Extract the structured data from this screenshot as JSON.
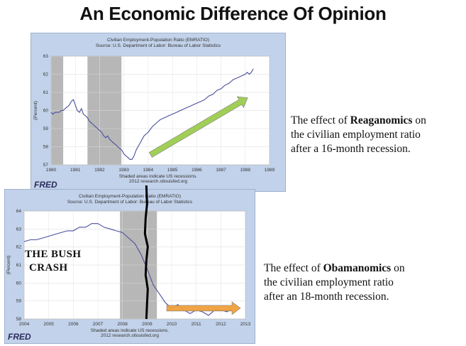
{
  "headline": "An Economic Difference Of Opinion",
  "chart_data": [
    {
      "type": "line",
      "title": "Civilian Employment-Population Ratio (EMRATIO)",
      "subtitle": "Source: U.S. Department of Labor: Bureau of Labor Statistics",
      "ylabel": "(Percent)",
      "xlim": [
        1980,
        1989
      ],
      "ylim": [
        57,
        63
      ],
      "yticks": [
        57,
        58,
        59,
        60,
        61,
        62,
        63
      ],
      "xticks": [
        "1980",
        "1981",
        "1982",
        "1983",
        "1984",
        "1985",
        "1986",
        "1987",
        "1988",
        "1989"
      ],
      "recessions": [
        [
          1980.0,
          1980.5
        ],
        [
          1981.5,
          1982.9
        ]
      ],
      "series": [
        {
          "x": [
            1980.0,
            1980.08,
            1980.17,
            1980.25,
            1980.33,
            1980.42,
            1980.5,
            1980.58,
            1980.67,
            1980.75,
            1980.83,
            1980.92,
            1981.0,
            1981.08,
            1981.17,
            1981.25,
            1981.33,
            1981.42,
            1981.5,
            1981.58,
            1981.67,
            1981.75,
            1981.83,
            1981.92,
            1982.0,
            1982.08,
            1982.17,
            1982.25,
            1982.33,
            1982.42,
            1982.5,
            1982.58,
            1982.67,
            1982.75,
            1982.83,
            1982.92,
            1983.0,
            1983.08,
            1983.17,
            1983.25,
            1983.33,
            1983.42,
            1983.5,
            1983.58,
            1983.67,
            1983.75,
            1983.83,
            1983.92,
            1984.0,
            1984.17,
            1984.33,
            1984.5,
            1984.67,
            1984.83,
            1985.0,
            1985.17,
            1985.33,
            1985.5,
            1985.67,
            1985.83,
            1986.0,
            1986.17,
            1986.33,
            1986.5,
            1986.67,
            1986.83,
            1987.0,
            1987.17,
            1987.33,
            1987.5,
            1987.67,
            1987.83,
            1988.0,
            1988.08,
            1988.17,
            1988.25,
            1988.33
          ],
          "y": [
            59.9,
            59.8,
            59.9,
            59.9,
            59.9,
            60.0,
            60.0,
            60.1,
            60.2,
            60.3,
            60.5,
            60.6,
            60.3,
            60.0,
            59.9,
            60.1,
            59.8,
            59.7,
            59.6,
            59.4,
            59.3,
            59.2,
            59.1,
            59.0,
            58.9,
            58.8,
            58.6,
            58.5,
            58.6,
            58.4,
            58.3,
            58.2,
            58.1,
            58.0,
            57.9,
            57.8,
            57.6,
            57.5,
            57.4,
            57.3,
            57.3,
            57.5,
            57.8,
            58.0,
            58.2,
            58.4,
            58.6,
            58.7,
            58.8,
            59.1,
            59.3,
            59.5,
            59.6,
            59.7,
            59.8,
            59.9,
            60.0,
            60.1,
            60.2,
            60.3,
            60.4,
            60.5,
            60.6,
            60.8,
            60.9,
            61.1,
            61.2,
            61.4,
            61.5,
            61.7,
            61.8,
            61.9,
            62.0,
            62.1,
            62.0,
            62.1,
            62.3
          ]
        }
      ],
      "footer": [
        "Shaded areas indicate US recessions.",
        "2012 research.stlouisfed.org"
      ],
      "logo": "FRED",
      "caption_prefix": "The effect of ",
      "caption_bold": "Reaganomics",
      "caption_suffix": " on",
      "caption_lines": [
        "the civilian employment ratio",
        "after a 16-month recession."
      ]
    },
    {
      "type": "line",
      "title": "Civilian Employment-Population Ratio (EMRATIO)",
      "subtitle": "Source: U.S. Department of Labor: Bureau of Labor Statistics",
      "ylabel": "(Percent)",
      "xlim": [
        2004,
        2013
      ],
      "ylim": [
        58,
        64
      ],
      "yticks": [
        58,
        59,
        60,
        61,
        62,
        63,
        64
      ],
      "xticks": [
        "2004",
        "2005",
        "2006",
        "2007",
        "2008",
        "2009",
        "2010",
        "2011",
        "2012",
        "2013"
      ],
      "recessions": [
        [
          2007.9,
          2009.4
        ]
      ],
      "series": [
        {
          "x": [
            2004.0,
            2004.25,
            2004.5,
            2004.75,
            2005.0,
            2005.25,
            2005.5,
            2005.75,
            2006.0,
            2006.25,
            2006.5,
            2006.75,
            2007.0,
            2007.25,
            2007.5,
            2007.75,
            2008.0,
            2008.25,
            2008.5,
            2008.75,
            2009.0,
            2009.25,
            2009.5,
            2009.75,
            2010.0,
            2010.25,
            2010.5,
            2010.75,
            2011.0,
            2011.25,
            2011.5,
            2011.75,
            2012.0,
            2012.25,
            2012.5
          ],
          "y": [
            62.3,
            62.4,
            62.4,
            62.5,
            62.6,
            62.7,
            62.8,
            62.9,
            62.9,
            63.1,
            63.1,
            63.3,
            63.3,
            63.1,
            63.0,
            62.9,
            62.8,
            62.5,
            62.2,
            61.6,
            60.8,
            59.9,
            59.4,
            58.9,
            58.6,
            58.8,
            58.5,
            58.3,
            58.5,
            58.4,
            58.2,
            58.5,
            58.5,
            58.4,
            58.6
          ]
        }
      ],
      "footer": [
        "Shaded areas indicate US recessions.",
        "2012 research.stlouisfed.org"
      ],
      "logo": "FRED",
      "annotation": [
        "THE BUSH",
        "CRASH"
      ],
      "caption_prefix": "The effect of ",
      "caption_bold": "Obamanomics",
      "caption_suffix": " on",
      "caption_lines": [
        "the civilian employment ratio",
        "after an 18-month recession."
      ]
    }
  ],
  "colors": {
    "line": "#4a4f9b",
    "recession": "#b7b7b7",
    "panel": "#c2d2ea",
    "arrow_green": "#9ccc4f",
    "arrow_orange": "#f0a03c",
    "crash_line": "#000000"
  }
}
